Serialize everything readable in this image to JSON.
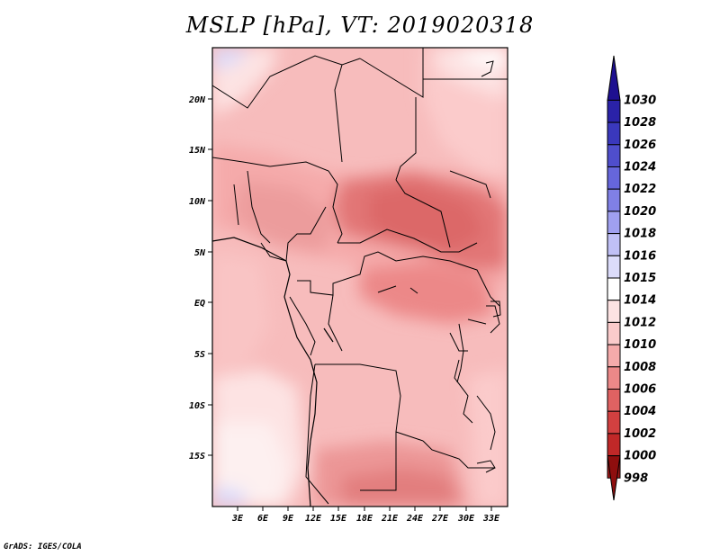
{
  "title": "MSLP [hPa], VT: 2019020318",
  "footer": "GrADS: IGES/COLA",
  "lat_labels": [
    "20N",
    "15N",
    "10N",
    "5N",
    "EQ",
    "5S",
    "10S",
    "15S"
  ],
  "lon_labels": [
    "3E",
    "6E",
    "9E",
    "12E",
    "15E",
    "18E",
    "21E",
    "24E",
    "27E",
    "30E",
    "33E"
  ],
  "colorbar": {
    "levels": [
      "1030",
      "1028",
      "1026",
      "1024",
      "1022",
      "1020",
      "1018",
      "1016",
      "1015",
      "1014",
      "1012",
      "1010",
      "1008",
      "1006",
      "1004",
      "1002",
      "1000",
      "998"
    ],
    "colors": [
      "#1e1090",
      "#2a22a8",
      "#3a38bc",
      "#4f4ecc",
      "#6666db",
      "#8080e6",
      "#a0a0f0",
      "#c0c0f6",
      "#dcdcfb",
      "#ffffff",
      "#fde3e3",
      "#fbcbcb",
      "#f5aaaa",
      "#ec8888",
      "#e06262",
      "#d24040",
      "#c02828",
      "#a81818",
      "#8e0e0e"
    ]
  }
}
